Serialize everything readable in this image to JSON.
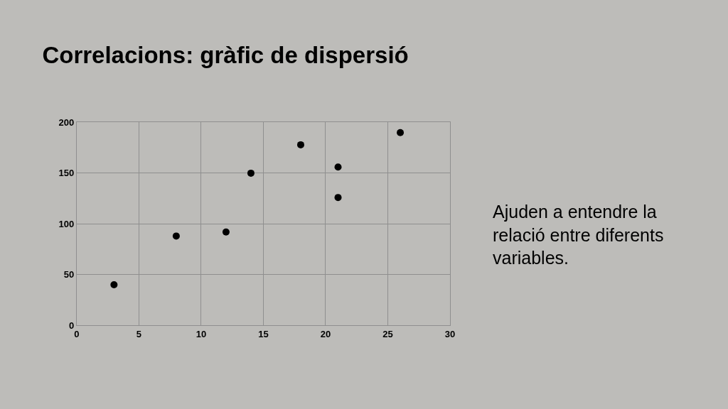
{
  "chart_data": {
    "type": "scatter",
    "title": "Correlacions: gràfic de dispersió",
    "x": [
      3,
      8,
      12,
      14,
      18,
      21,
      21,
      26
    ],
    "series": [
      {
        "color": "#000000",
        "values": [
          40,
          88,
          92,
          150,
          178,
          156,
          126,
          190
        ]
      }
    ],
    "xlim": [
      0,
      30
    ],
    "xticks": [
      0,
      5,
      10,
      15,
      20,
      25,
      30
    ],
    "ylim": [
      0,
      200
    ],
    "yticks": [
      0,
      50,
      100,
      150,
      200
    ],
    "grid": true,
    "marker": "circle",
    "annotations": [
      "Ajuden a entendre la relació entre diferents variables."
    ]
  }
}
